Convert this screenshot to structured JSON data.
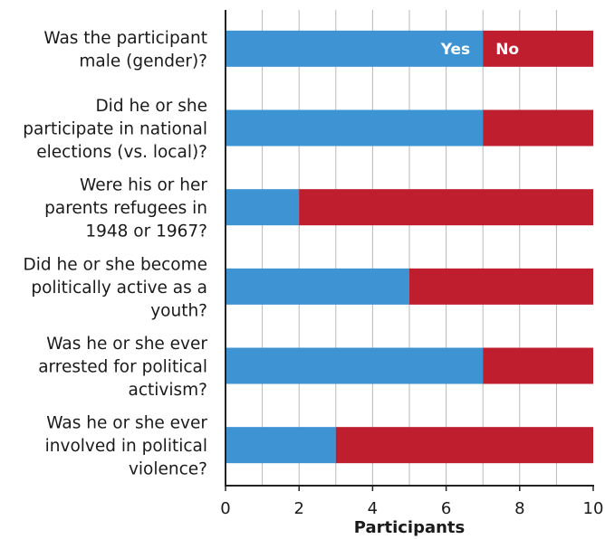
{
  "chart_data": {
    "type": "bar",
    "orientation": "horizontal",
    "stacked": true,
    "categories": [
      [
        "Was the participant",
        "male (gender)?"
      ],
      [
        "Did he or she",
        "participate in national",
        "elections (vs. local)?"
      ],
      [
        "Were his or her",
        "parents refugees in",
        "1948 or 1967?"
      ],
      [
        "Did he or she become",
        "politically active as a",
        "youth?"
      ],
      [
        "Was he or she ever",
        "arrested for political",
        "activism?"
      ],
      [
        "Was he or she ever",
        "involved in political",
        "violence?"
      ]
    ],
    "series": [
      {
        "name": "Yes",
        "color": "#3e93d2",
        "values": [
          7,
          7,
          2,
          5,
          7,
          3
        ]
      },
      {
        "name": "No",
        "color": "#bf1e2e",
        "values": [
          3,
          3,
          8,
          5,
          3,
          7
        ]
      }
    ],
    "xlabel": "Participants",
    "xlim": [
      0,
      10
    ],
    "xticks": [
      0,
      2,
      4,
      6,
      8,
      10
    ],
    "grid": true,
    "legend": "inside-first-bar"
  }
}
